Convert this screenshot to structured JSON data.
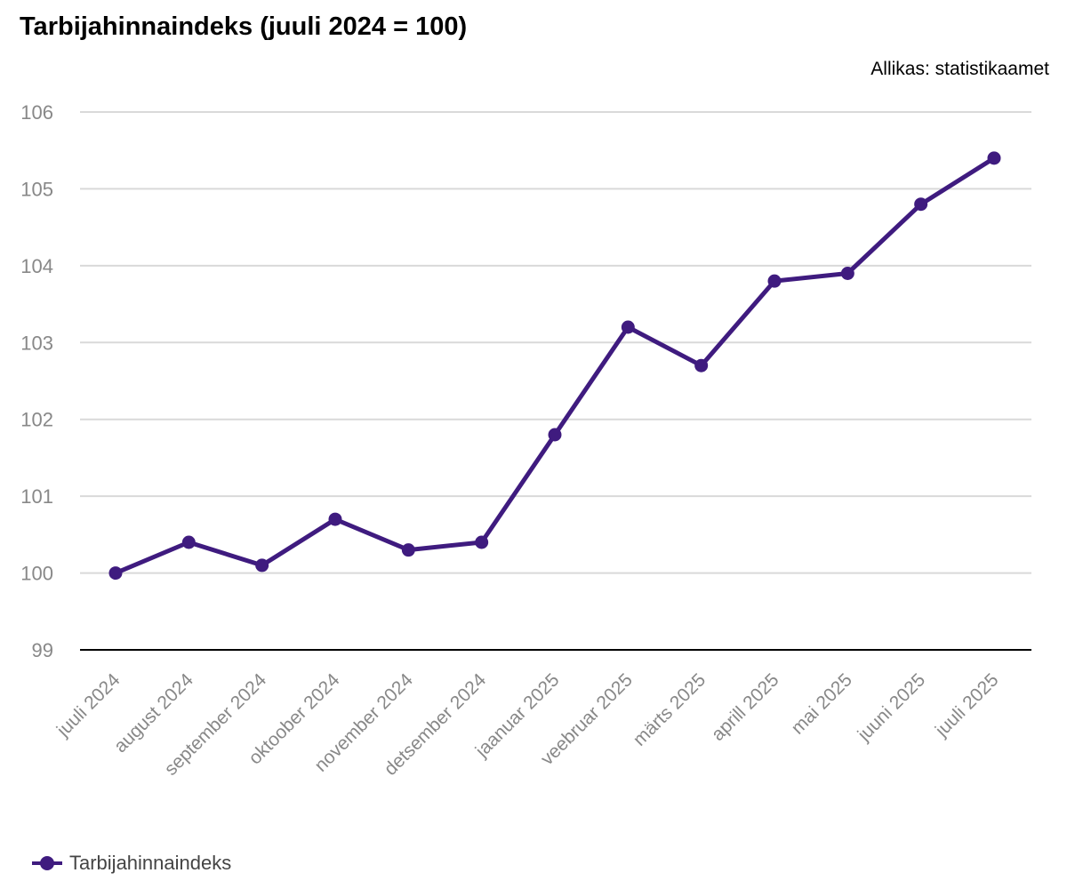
{
  "title": "Tarbijahinnaindeks (juuli 2024 = 100)",
  "source": "Allikas: statistikaamet",
  "colors": {
    "series": "#3f1b7f",
    "grid": "#d9d9d9",
    "axis": "#000000",
    "tick_text": "#888888"
  },
  "chart_data": {
    "type": "line",
    "title": "Tarbijahinnaindeks (juuli 2024 = 100)",
    "categories": [
      "juuli 2024",
      "august 2024",
      "september 2024",
      "oktoober 2024",
      "november 2024",
      "detsember 2024",
      "jaanuar 2025",
      "veebruar 2025",
      "märts 2025",
      "aprill 2025",
      "mai 2025",
      "juuni 2025",
      "juuli 2025"
    ],
    "series": [
      {
        "name": "Tarbijahinnaindeks",
        "values": [
          100.0,
          100.4,
          100.1,
          100.7,
          100.3,
          100.4,
          101.8,
          103.2,
          102.7,
          103.8,
          103.9,
          104.8,
          105.4
        ]
      }
    ],
    "ylim": [
      99,
      106
    ],
    "yticks": [
      99,
      100,
      101,
      102,
      103,
      104,
      105,
      106
    ],
    "xlabel": "",
    "ylabel": "",
    "grid": true,
    "legend": "bottom-left"
  }
}
